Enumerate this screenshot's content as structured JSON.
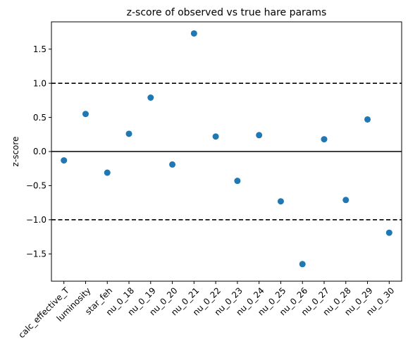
{
  "chart_data": {
    "type": "scatter",
    "title": "z-score of observed vs true hare params",
    "xlabel": "",
    "ylabel": "z-score",
    "categories": [
      "calc_effective_T",
      "luminosity",
      "star_feh",
      "nu_0_18",
      "nu_0_19",
      "nu_0_20",
      "nu_0_21",
      "nu_0_22",
      "nu_0_23",
      "nu_0_24",
      "nu_0_25",
      "nu_0_26",
      "nu_0_27",
      "nu_0_28",
      "nu_0_29",
      "nu_0_30"
    ],
    "values": [
      -0.13,
      0.55,
      -0.31,
      0.26,
      0.79,
      -0.19,
      1.73,
      0.22,
      -0.43,
      0.24,
      -0.73,
      -1.65,
      0.18,
      -0.71,
      0.47,
      -1.19
    ],
    "ylim": [
      -1.9,
      1.9
    ],
    "yticks": [
      -1.5,
      -1.0,
      -0.5,
      0.0,
      0.5,
      1.0,
      1.5
    ],
    "ytick_labels": [
      "−1.5",
      "−1.0",
      "−0.5",
      "0.0",
      "0.5",
      "1.0",
      "1.5"
    ],
    "reference_lines": [
      {
        "y": 0.0,
        "style": "solid"
      },
      {
        "y": 1.0,
        "style": "dashed"
      },
      {
        "y": -1.0,
        "style": "dashed"
      }
    ],
    "marker_color": "#1f77b4",
    "grid": false
  }
}
